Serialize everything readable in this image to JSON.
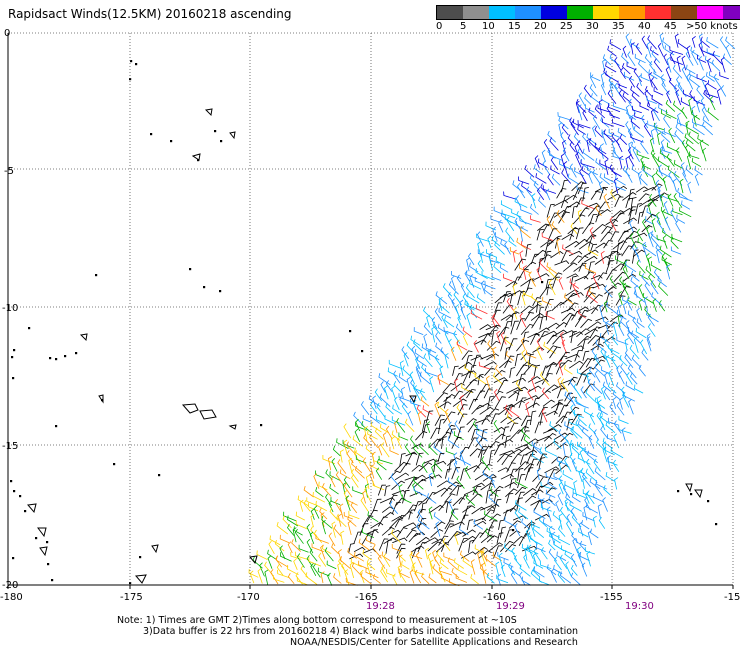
{
  "title": "Rapidsact Winds(12.5KM) 20160218 ascending",
  "legend": {
    "colors": [
      "#4d4d4d",
      "#8f8f8f",
      "#00bfff",
      "#1e90ff",
      "#0000e0",
      "#00b000",
      "#ffd700",
      "#ff9900",
      "#ff3030",
      "#8b4513",
      "#ff00ff",
      "#8000c0"
    ],
    "labels": [
      "0",
      "5",
      "10",
      "15",
      "20",
      "25",
      "30",
      "35",
      "40",
      "45",
      ">50 knots"
    ]
  },
  "lat_labels": [
    "0",
    "-5",
    "-10",
    "-15",
    "-20"
  ],
  "lon_labels": [
    "-180",
    "-175",
    "-170",
    "-165",
    "-160",
    "-155",
    "-15"
  ],
  "time_labels": [
    "19:28",
    "19:29",
    "19:30"
  ],
  "notes": [
    "Note: 1) Times are GMT 2)Times along bottom correspond to measurement at ~10S",
    "3)Data buffer is 22 hrs from 20160218 4) Black wind barbs indicate possible contamination",
    "NOAA/NESDIS/Center for Satellite Applications and Research"
  ],
  "colors": {
    "grid": "#555555",
    "time": "#800080",
    "contaminated": "#000000"
  }
}
